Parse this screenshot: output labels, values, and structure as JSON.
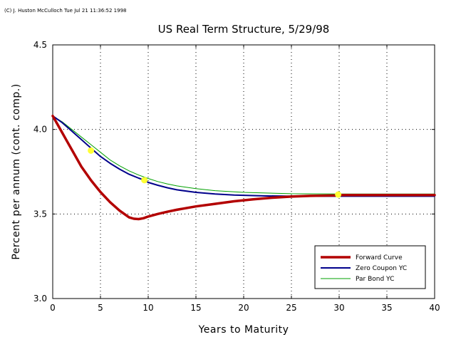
{
  "copyright": "(C) J. Huston McCulloch Tue Jul 21 11:36:52 1998",
  "chart_data": {
    "type": "line",
    "title": "US Real Term Structure, 5/29/98",
    "xlabel": "Years to Maturity",
    "ylabel": "Percent per annum (cont. comp.)",
    "xlim": [
      0,
      40
    ],
    "ylim": [
      3.0,
      4.5
    ],
    "xticks": [
      0,
      5,
      10,
      15,
      20,
      25,
      30,
      35,
      40
    ],
    "yticks": [
      3.0,
      3.5,
      4.0,
      4.5
    ],
    "ytick_labels": [
      "3.0",
      "3.5",
      "4.0",
      "4.5"
    ],
    "grid": true,
    "legend_position": "bottom-right",
    "series": [
      {
        "name": "Forward Curve",
        "color": "#b30000",
        "x": [
          0,
          0.5,
          1,
          1.5,
          2,
          3,
          4,
          5,
          6,
          7,
          8,
          8.5,
          9,
          9.5,
          10,
          11,
          12,
          13,
          15,
          17,
          19,
          21,
          23,
          25,
          27,
          29.9,
          30,
          35,
          40
        ],
        "y": [
          4.08,
          4.03,
          3.98,
          3.93,
          3.88,
          3.78,
          3.7,
          3.63,
          3.57,
          3.52,
          3.48,
          3.472,
          3.47,
          3.475,
          3.485,
          3.5,
          3.513,
          3.525,
          3.545,
          3.56,
          3.575,
          3.587,
          3.596,
          3.603,
          3.607,
          3.61,
          3.612,
          3.612,
          3.612
        ]
      },
      {
        "name": "Zero Coupon YC",
        "color": "#00008b",
        "x": [
          0,
          1,
          2,
          3,
          4,
          5,
          6,
          7,
          8,
          9,
          9.6,
          10,
          11,
          12,
          13,
          15,
          17,
          19,
          22,
          25,
          30,
          35,
          40
        ],
        "y": [
          4.08,
          4.04,
          3.99,
          3.94,
          3.89,
          3.84,
          3.8,
          3.765,
          3.735,
          3.712,
          3.7,
          3.687,
          3.67,
          3.655,
          3.643,
          3.628,
          3.618,
          3.612,
          3.607,
          3.605,
          3.605,
          3.605,
          3.605
        ]
      },
      {
        "name": "Par Bond YC",
        "color": "#00a000",
        "x": [
          0,
          1,
          2,
          3,
          4,
          5,
          6,
          7,
          8,
          9,
          10,
          11,
          12,
          13,
          15,
          17,
          20,
          25,
          30,
          35,
          40
        ],
        "y": [
          4.08,
          4.045,
          4.0,
          3.955,
          3.91,
          3.865,
          3.82,
          3.785,
          3.755,
          3.73,
          3.71,
          3.692,
          3.678,
          3.666,
          3.65,
          3.638,
          3.628,
          3.62,
          3.618,
          3.618,
          3.618
        ]
      }
    ],
    "markers": {
      "color": "#ffff33",
      "points": [
        {
          "x": 4.0,
          "y": 3.875
        },
        {
          "x": 9.6,
          "y": 3.7
        },
        {
          "x": 29.9,
          "y": 3.615
        }
      ]
    }
  }
}
